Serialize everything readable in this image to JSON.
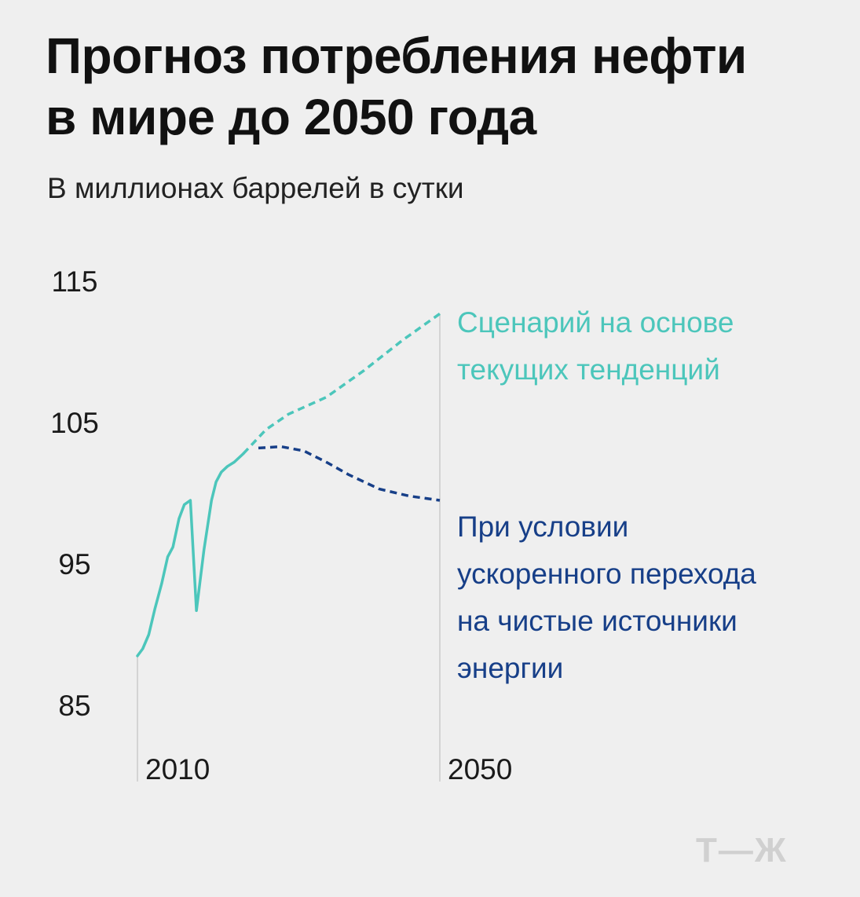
{
  "title_line1": "Прогноз потребления нефти",
  "title_line2": "в мире до 2050 года",
  "subtitle": "В миллионах баррелей в сутки",
  "logo": "Т—Ж",
  "chart_data": {
    "type": "line",
    "title": "Прогноз потребления нефти в мире до 2050 года",
    "ylabel": "В миллионах баррелей в сутки",
    "xlim": [
      2010,
      2050
    ],
    "ylim": [
      85,
      115
    ],
    "yticks": [
      "115",
      "105",
      "95",
      "85"
    ],
    "xticks": [
      "2010",
      "2050"
    ],
    "colors": {
      "current": "#4cc6bb",
      "accelerated": "#173f88",
      "guide": "#cccccc"
    },
    "series": [
      {
        "name": "historical",
        "style": "solid",
        "x": [
          2010,
          2010.7,
          2011.5,
          2012.3,
          2013.2,
          2014,
          2014.7,
          2015.5,
          2016.2,
          2017,
          2017.8,
          2018.8,
          2019.8,
          2020.4,
          2021.1,
          2021.9,
          2022.8,
          2024
        ],
        "y": [
          88.5,
          89,
          90,
          91.8,
          93.6,
          95.5,
          96.2,
          98.2,
          99.2,
          99.5,
          91.7,
          96,
          99.5,
          100.8,
          101.5,
          101.9,
          102.2,
          102.8
        ]
      },
      {
        "name": "Сценарий на основе текущих тенденций",
        "style": "dashed",
        "x": [
          2024,
          2027,
          2030,
          2035,
          2040,
          2045,
          2050
        ],
        "y": [
          102.8,
          104.5,
          105.6,
          106.8,
          108.7,
          110.8,
          112.7
        ]
      },
      {
        "name": "При условии ускоренного перехода на чистые источники энергии",
        "style": "dashed",
        "x": [
          2026,
          2029,
          2032,
          2035,
          2038,
          2042,
          2046,
          2050
        ],
        "y": [
          103.2,
          103.3,
          103,
          102.2,
          101.3,
          100.3,
          99.8,
          99.5
        ]
      }
    ],
    "legend": [
      {
        "series": "current",
        "lines": [
          "Сценарий на основе",
          "текущих тенденций"
        ]
      },
      {
        "series": "accelerated",
        "lines": [
          "При условии",
          "ускоренного перехода",
          "на чистые источники",
          "энергии"
        ]
      }
    ]
  }
}
